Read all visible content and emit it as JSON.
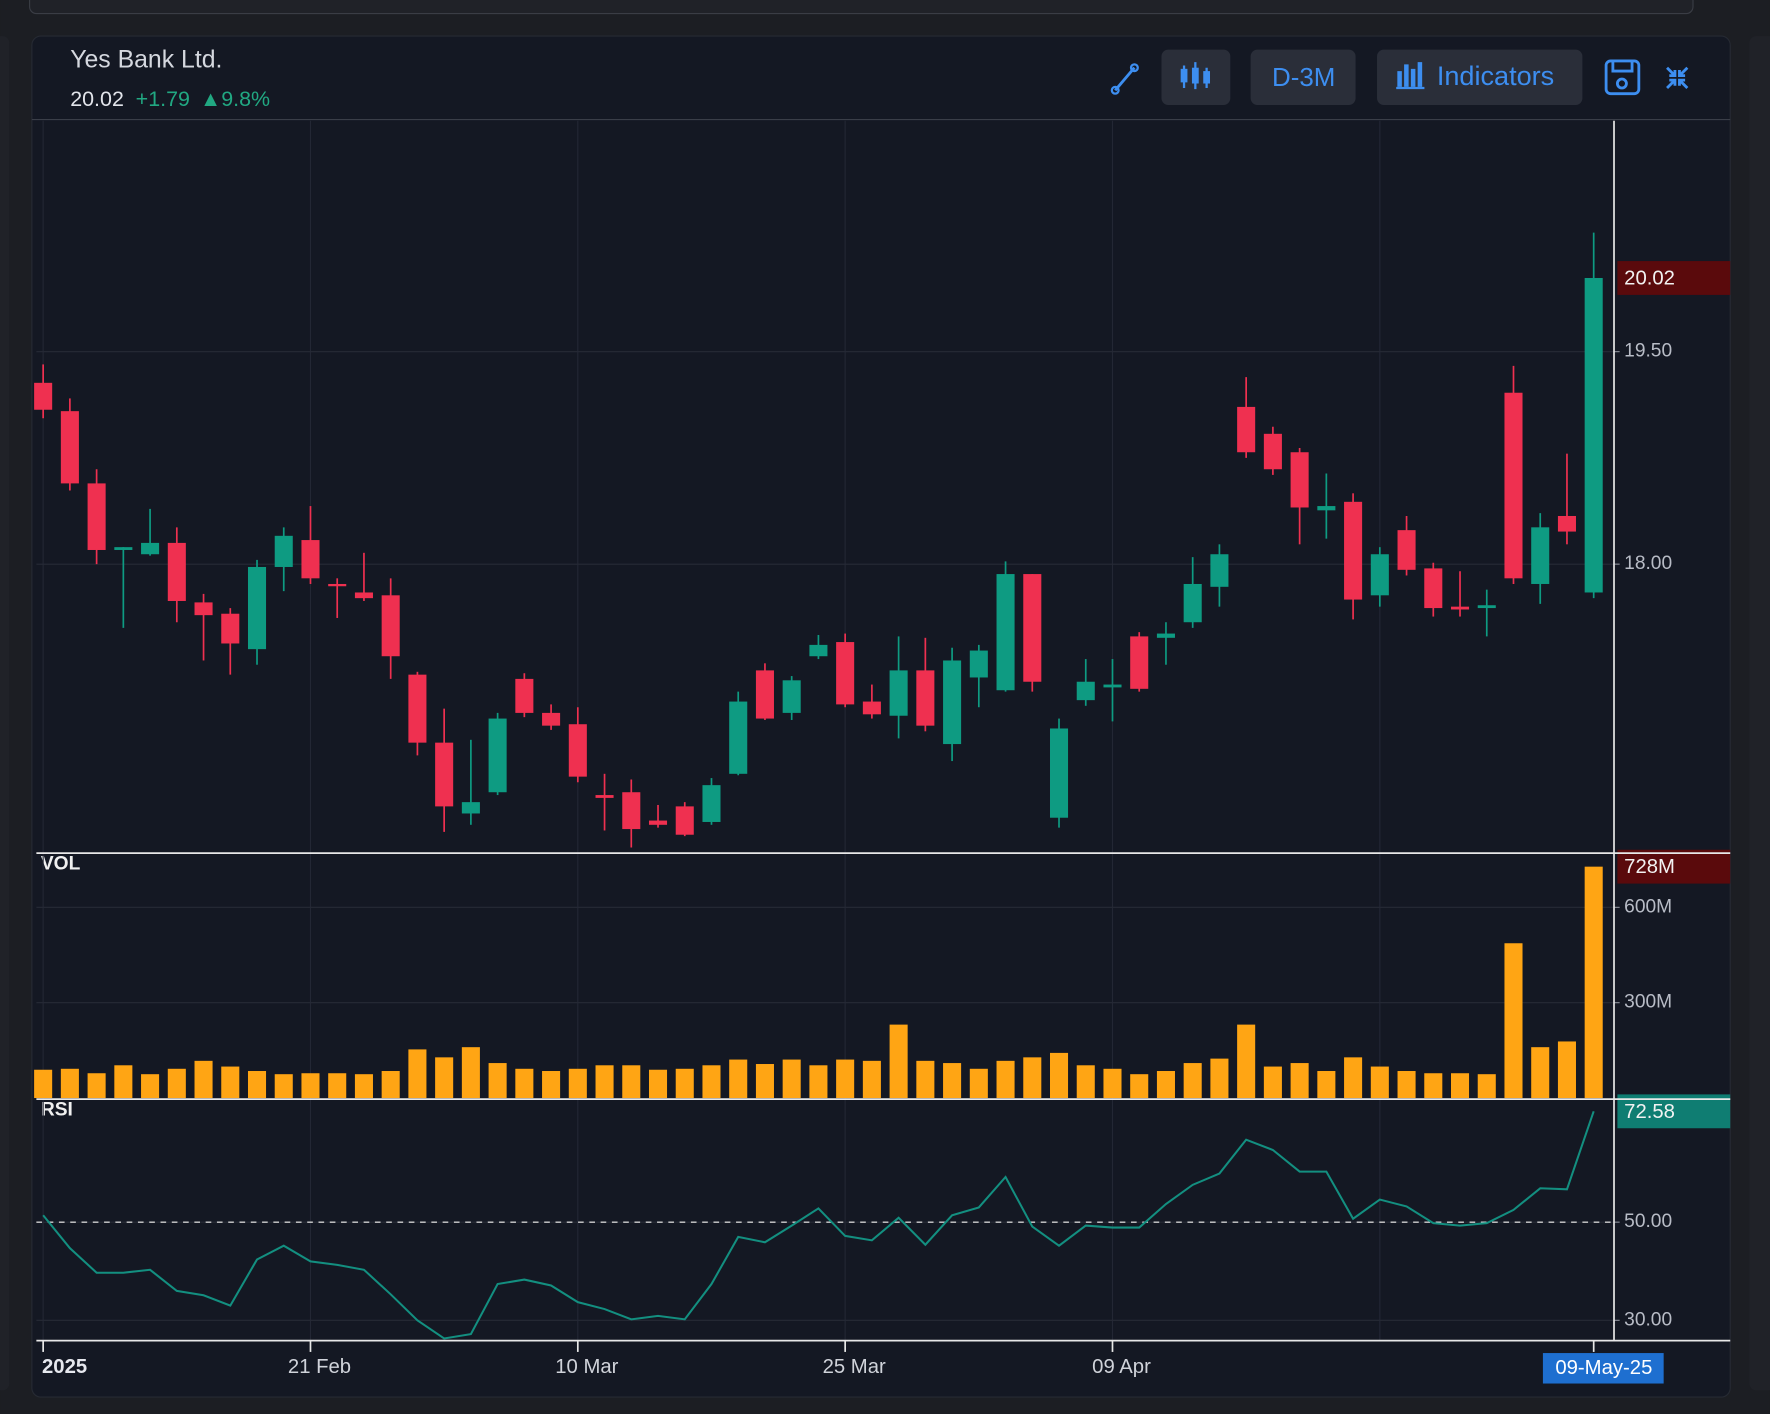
{
  "header": {
    "title": "Yes Bank Ltd.",
    "price": "20.02",
    "change": "+1.79",
    "change_pct": "▲9.8%",
    "buttons": [
      "D-3M",
      "Indicators"
    ]
  },
  "chart_data": [
    {
      "type": "candlestick",
      "x": [
        "2025",
        null,
        null,
        null,
        null,
        null,
        null,
        null,
        null,
        null,
        "21 Feb",
        null,
        null,
        null,
        null,
        null,
        null,
        null,
        null,
        null,
        "10 Mar",
        null,
        null,
        null,
        null,
        null,
        null,
        null,
        null,
        null,
        "25 Mar",
        null,
        null,
        null,
        null,
        null,
        null,
        null,
        null,
        null,
        "09 Apr",
        null,
        null,
        null,
        null,
        null,
        null,
        null,
        null,
        null,
        null,
        null,
        null,
        null,
        null,
        null,
        null,
        null,
        "09-May-25"
      ],
      "open": [
        19.28,
        19.08,
        18.57,
        18.1,
        18.07,
        18.15,
        17.73,
        17.65,
        17.4,
        17.98,
        18.17,
        17.86,
        17.8,
        17.78,
        17.22,
        16.74,
        16.24,
        16.39,
        17.19,
        16.95,
        16.87,
        16.37,
        16.39,
        16.19,
        16.29,
        16.18,
        16.52,
        17.25,
        16.95,
        17.35,
        17.45,
        17.03,
        16.93,
        17.25,
        16.73,
        17.2,
        17.11,
        17.93,
        16.21,
        17.04,
        17.13,
        17.49,
        17.48,
        17.59,
        17.84,
        19.11,
        18.92,
        18.79,
        18.38,
        18.44,
        17.78,
        18.24,
        17.97,
        17.7,
        17.69,
        19.21,
        17.86,
        18.34,
        17.8
      ],
      "high": [
        19.41,
        19.17,
        18.67,
        18.12,
        18.39,
        18.26,
        17.79,
        17.69,
        18.03,
        18.26,
        18.41,
        17.9,
        18.08,
        17.9,
        17.24,
        16.98,
        16.76,
        16.95,
        17.23,
        17.01,
        16.99,
        16.52,
        16.48,
        16.3,
        16.32,
        16.49,
        17.1,
        17.3,
        17.21,
        17.5,
        17.51,
        17.15,
        17.49,
        17.48,
        17.41,
        17.43,
        18.02,
        17.93,
        16.91,
        17.33,
        17.33,
        17.52,
        17.59,
        18.05,
        18.14,
        19.32,
        18.97,
        18.82,
        18.64,
        18.5,
        18.12,
        18.34,
        18.01,
        17.95,
        17.82,
        19.4,
        18.36,
        18.78,
        20.34
      ],
      "low": [
        19.03,
        18.52,
        18.0,
        17.55,
        18.06,
        17.59,
        17.32,
        17.22,
        17.29,
        17.81,
        17.86,
        17.62,
        17.74,
        17.19,
        16.65,
        16.11,
        16.16,
        16.37,
        16.92,
        16.83,
        16.46,
        16.12,
        16.0,
        16.14,
        16.08,
        16.16,
        16.51,
        16.9,
        16.9,
        17.33,
        16.99,
        16.91,
        16.77,
        16.82,
        16.61,
        16.99,
        17.1,
        17.1,
        16.14,
        17.0,
        16.89,
        17.1,
        17.29,
        17.55,
        17.7,
        18.75,
        18.63,
        18.14,
        18.18,
        17.61,
        17.7,
        17.92,
        17.63,
        17.63,
        17.49,
        17.86,
        17.72,
        18.14,
        17.76
      ],
      "close": [
        19.09,
        18.57,
        18.1,
        18.12,
        18.15,
        17.74,
        17.64,
        17.44,
        17.98,
        18.2,
        17.9,
        17.85,
        17.76,
        17.35,
        16.74,
        16.29,
        16.32,
        16.91,
        16.95,
        16.86,
        16.5,
        16.35,
        16.13,
        16.16,
        16.09,
        16.44,
        17.03,
        16.91,
        17.18,
        17.43,
        17.01,
        16.94,
        17.25,
        16.86,
        17.32,
        17.39,
        17.93,
        17.17,
        16.84,
        17.17,
        17.15,
        17.12,
        17.51,
        17.86,
        18.07,
        18.79,
        18.67,
        18.4,
        18.41,
        17.75,
        18.07,
        17.96,
        17.69,
        17.68,
        17.71,
        17.9,
        18.26,
        18.23,
        20.02
      ],
      "up_color": "#0e9b82",
      "down_color": "#ef3050",
      "ylim": [
        15.96,
        21.13
      ],
      "yticks": [
        {
          "value": 18,
          "label": "18.00"
        },
        {
          "value": 19.5,
          "label": "19.50"
        }
      ],
      "grid": true
    },
    {
      "type": "bar",
      "title": "VOL",
      "values": [
        89,
        92,
        78,
        103,
        75,
        92,
        117,
        99,
        85,
        75,
        78,
        78,
        75,
        85,
        153,
        128,
        160,
        110,
        92,
        85,
        92,
        103,
        103,
        89,
        92,
        103,
        121,
        107,
        121,
        103,
        121,
        117,
        231,
        117,
        110,
        92,
        117,
        128,
        142,
        103,
        92,
        75,
        85,
        110,
        124,
        231,
        99,
        110,
        85,
        128,
        99,
        85,
        78,
        78,
        75,
        487,
        160,
        178,
        728
      ],
      "last_value_label": "728M",
      "color": "#ffa514",
      "ylim": [
        0,
        767
      ],
      "yticks": [
        {
          "value": 300,
          "label": "300M"
        },
        {
          "value": 600,
          "label": "600M"
        }
      ],
      "grid": true
    },
    {
      "type": "line",
      "title": "RSI",
      "values": [
        51.4,
        44.7,
        39.7,
        39.7,
        40.3,
        36.0,
        35.1,
        33.0,
        42.4,
        45.2,
        42.0,
        41.3,
        40.3,
        35.3,
        30.0,
        26.3,
        27.2,
        37.4,
        38.3,
        37.1,
        33.7,
        32.3,
        30.2,
        30.9,
        30.2,
        37.4,
        47.0,
        45.9,
        49.3,
        52.8,
        47.2,
        46.3,
        50.9,
        45.4,
        51.4,
        53.0,
        59.2,
        49.1,
        45.2,
        49.3,
        48.9,
        48.9,
        53.7,
        57.6,
        59.9,
        66.8,
        64.7,
        60.3,
        60.3,
        50.7,
        54.6,
        53.2,
        49.8,
        49.3,
        49.8,
        52.5,
        56.9,
        56.7,
        72.58
      ],
      "color": "#138f80",
      "reference_line": 50,
      "ylim": [
        25.86,
        74.83
      ],
      "yticks": [
        {
          "value": 30,
          "label": "30.00"
        },
        {
          "value": 50,
          "label": "50.00"
        }
      ],
      "grid": true
    }
  ]
}
